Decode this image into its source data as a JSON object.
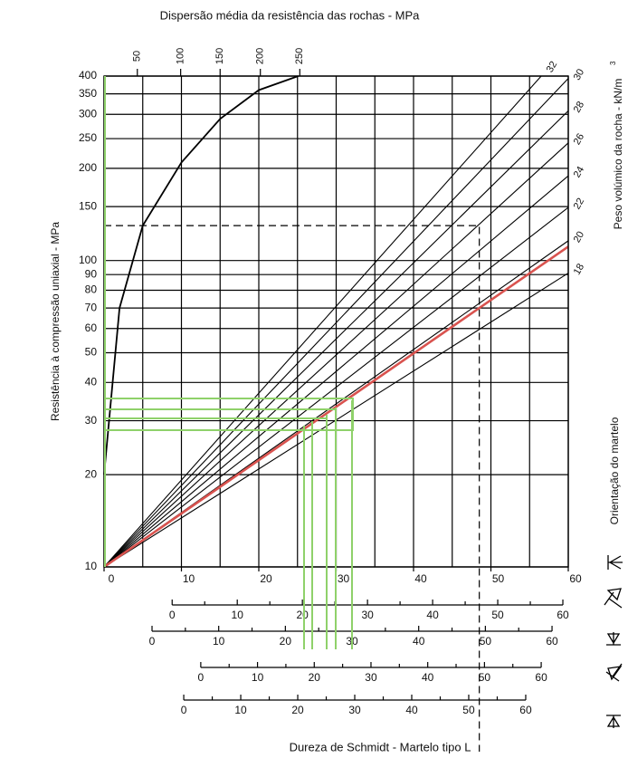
{
  "chart_data": {
    "type": "nomogram",
    "title": "Dispersão média da resistência das rochas - MPa",
    "y_label": "Resistência à compressão uniaxial - MPa",
    "x_label": "Dureza de Schmidt - Martelo tipo L",
    "y2_label": "Peso volúmico da rocha - kN/m",
    "y2_label_sup": "3",
    "orientation_label": "Orientação do martelo",
    "xlim": [
      0,
      60
    ],
    "xticks": [
      0,
      10,
      20,
      30,
      40,
      50,
      60
    ],
    "xgrid": [
      0,
      5,
      10,
      15,
      20,
      25,
      30,
      35,
      40,
      45,
      50,
      55,
      60
    ],
    "ylim": [
      10,
      400
    ],
    "yscale": "log",
    "yticks": [
      10,
      20,
      30,
      40,
      50,
      60,
      70,
      80,
      90,
      100,
      150,
      200,
      250,
      300,
      350,
      400
    ],
    "grid": true,
    "series": [
      {
        "name": "18",
        "color": "#000000",
        "x": [
          0,
          60
        ],
        "values": [
          10,
          91
        ]
      },
      {
        "name": "20",
        "color": "#000000",
        "x": [
          0,
          60
        ],
        "values": [
          10,
          116
        ]
      },
      {
        "name": "22",
        "color": "#000000",
        "x": [
          0,
          60
        ],
        "values": [
          10,
          149
        ]
      },
      {
        "name": "24",
        "color": "#000000",
        "x": [
          0,
          60
        ],
        "values": [
          10,
          189
        ]
      },
      {
        "name": "26",
        "color": "#000000",
        "x": [
          0,
          60
        ],
        "values": [
          10,
          242
        ]
      },
      {
        "name": "28",
        "color": "#000000",
        "x": [
          0,
          60
        ],
        "values": [
          10,
          308
        ]
      },
      {
        "name": "30",
        "color": "#000000",
        "x": [
          0,
          60
        ],
        "values": [
          10,
          393
        ]
      },
      {
        "name": "32",
        "color": "#000000",
        "x": [
          0,
          56.5
        ],
        "values": [
          10,
          400
        ]
      },
      {
        "color": "#d9534f",
        "x": [
          0,
          60
        ],
        "values": [
          10,
          111
        ]
      }
    ],
    "dispersion": {
      "color": "#000000",
      "x": [
        0,
        2,
        5,
        10,
        15,
        20,
        25.1
      ],
      "values": [
        20,
        70,
        130,
        209,
        290,
        360,
        400
      ]
    },
    "dispersion_ticks": [
      50,
      100,
      150,
      200,
      250
    ],
    "dispersion_tick_x": [
      4.3,
      9.9,
      15,
      20.2,
      25.3
    ],
    "reference": {
      "x": [
        48.5
      ],
      "values": [
        130
      ]
    },
    "scales": [
      {
        "on_main": [
          8.8,
          59.3
        ],
        "ticks": [
          0,
          10,
          20,
          30,
          40,
          50,
          60
        ]
      },
      {
        "on_main": [
          6.2,
          57.9
        ],
        "ticks": [
          0,
          10,
          20,
          30,
          40,
          50,
          60
        ]
      },
      {
        "on_main": [
          12.5,
          56.5
        ],
        "ticks": [
          0,
          10,
          20,
          30,
          40,
          50,
          60
        ]
      },
      {
        "on_main": [
          10.3,
          54.5
        ],
        "ticks": [
          0,
          10,
          20,
          30,
          40,
          50,
          60
        ]
      }
    ]
  }
}
